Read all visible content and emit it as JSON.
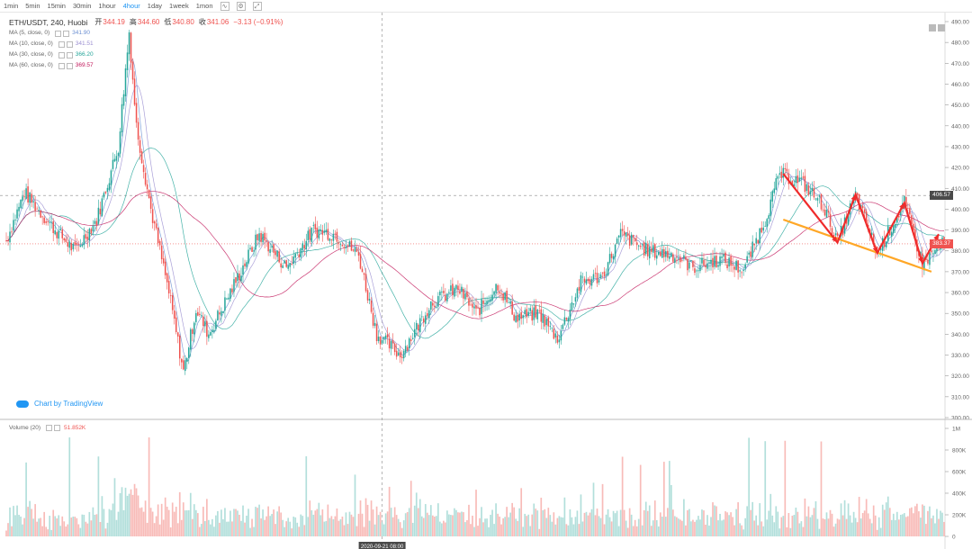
{
  "toolbar": {
    "intervals": [
      "1min",
      "5min",
      "15min",
      "30min",
      "1hour",
      "4hour",
      "1day",
      "1week",
      "1mon"
    ],
    "active_interval": "4hour",
    "tools": [
      "indicator-icon",
      "settings-icon",
      "fullscreen-icon"
    ]
  },
  "header": {
    "symbol": "ETH/USDT, 240, Huobi",
    "open_label": "开",
    "open": "344.19",
    "high_label": "高",
    "high": "344.60",
    "low_label": "低",
    "low": "340.80",
    "close_label": "收",
    "close": "341.06",
    "change": "−3.13 (−0.91%)"
  },
  "ma_legend": [
    {
      "name": "MA (5, close, 0)",
      "value": "341.90",
      "color": "#6b8fd1"
    },
    {
      "name": "MA (10, close, 0)",
      "value": "341.51",
      "color": "#9b8fd1"
    },
    {
      "name": "MA (30, close, 0)",
      "value": "366.20",
      "color": "#26a69a"
    },
    {
      "name": "MA (60, close, 0)",
      "value": "369.57",
      "color": "#c2185b"
    }
  ],
  "volume_legend": {
    "name": "Volume (20)",
    "value": "51.852K"
  },
  "brand": "Chart by TradingView",
  "price_tags": {
    "hline": "406.57",
    "last": "383.37"
  },
  "crosshair_time": "2020-09-21 08:00",
  "colors": {
    "up": "#26a69a",
    "down": "#ef5350",
    "vol_up": "#b2dfdb",
    "vol_down": "#f8bbb8",
    "annot_red": "#ef2b2b",
    "annot_orange": "#ffa726"
  },
  "chart_data": {
    "type": "candlestick",
    "y_axis": {
      "min": 300,
      "max": 490,
      "ticks": [
        300,
        310,
        320,
        330,
        340,
        350,
        360,
        370,
        380,
        390,
        400,
        410,
        420,
        430,
        440,
        450,
        460,
        470,
        480,
        490
      ]
    },
    "volume_axis": {
      "max": 1000000,
      "ticks": [
        "0",
        "200K",
        "400K",
        "600K",
        "800K",
        "1M"
      ]
    },
    "levels": {
      "dashed_hline": 406.57,
      "last_price": 383.37
    },
    "key_points": [
      {
        "i": 0,
        "price": 385
      },
      {
        "i": 10,
        "price": 408
      },
      {
        "i": 25,
        "price": 392
      },
      {
        "i": 38,
        "price": 380
      },
      {
        "i": 50,
        "price": 395
      },
      {
        "i": 62,
        "price": 430
      },
      {
        "i": 68,
        "price": 485
      },
      {
        "i": 72,
        "price": 440
      },
      {
        "i": 80,
        "price": 400
      },
      {
        "i": 90,
        "price": 360
      },
      {
        "i": 98,
        "price": 322
      },
      {
        "i": 105,
        "price": 352
      },
      {
        "i": 112,
        "price": 340
      },
      {
        "i": 125,
        "price": 362
      },
      {
        "i": 140,
        "price": 388
      },
      {
        "i": 155,
        "price": 372
      },
      {
        "i": 170,
        "price": 390
      },
      {
        "i": 182,
        "price": 388
      },
      {
        "i": 195,
        "price": 378
      },
      {
        "i": 205,
        "price": 340
      },
      {
        "i": 218,
        "price": 330
      },
      {
        "i": 225,
        "price": 340
      },
      {
        "i": 235,
        "price": 355
      },
      {
        "i": 250,
        "price": 362
      },
      {
        "i": 260,
        "price": 350
      },
      {
        "i": 272,
        "price": 364
      },
      {
        "i": 282,
        "price": 348
      },
      {
        "i": 295,
        "price": 350
      },
      {
        "i": 305,
        "price": 338
      },
      {
        "i": 318,
        "price": 365
      },
      {
        "i": 330,
        "price": 368
      },
      {
        "i": 340,
        "price": 388
      },
      {
        "i": 355,
        "price": 380
      },
      {
        "i": 370,
        "price": 378
      },
      {
        "i": 380,
        "price": 372
      },
      {
        "i": 395,
        "price": 376
      },
      {
        "i": 408,
        "price": 371
      },
      {
        "i": 420,
        "price": 395
      },
      {
        "i": 428,
        "price": 417
      },
      {
        "i": 440,
        "price": 413
      },
      {
        "i": 452,
        "price": 402
      },
      {
        "i": 460,
        "price": 384
      },
      {
        "i": 470,
        "price": 407
      },
      {
        "i": 482,
        "price": 379
      },
      {
        "i": 497,
        "price": 403
      },
      {
        "i": 507,
        "price": 374
      },
      {
        "i": 519,
        "price": 384
      }
    ],
    "annotation_zigzag": [
      [
        430,
        417
      ],
      [
        460,
        384
      ],
      [
        470,
        407
      ],
      [
        482,
        379
      ],
      [
        497,
        403
      ],
      [
        507,
        374
      ],
      [
        516,
        388
      ]
    ],
    "annotation_trendline": [
      [
        430,
        395
      ],
      [
        512,
        370
      ]
    ],
    "bars": 520
  }
}
